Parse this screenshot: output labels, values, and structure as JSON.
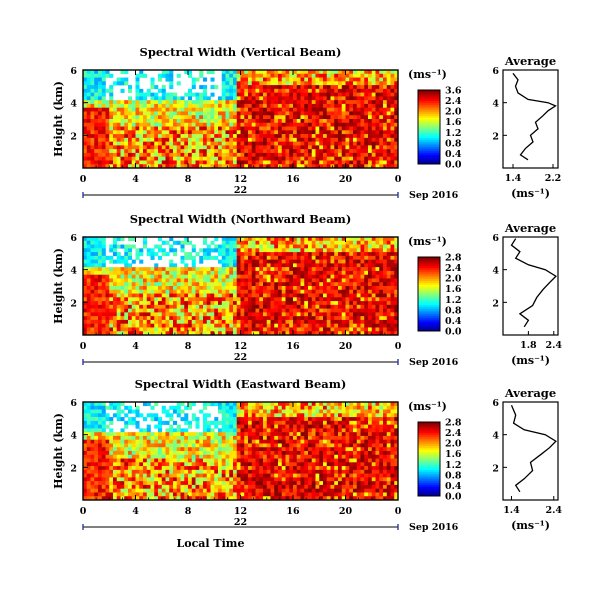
{
  "chart_data": [
    {
      "type": "heatmap",
      "title": "Spectral Width (Vertical Beam)",
      "ylabel": "Height (km)",
      "y_ticks": [
        "6",
        "4",
        "2"
      ],
      "ylim": [
        0,
        6
      ],
      "x_ticks": [
        "0",
        "4",
        "8",
        "12",
        "16",
        "20",
        "0"
      ],
      "day_label": "22",
      "date_label": "Sep 2016",
      "unit_label": "(ms⁻¹)",
      "colorbar": {
        "ticks": [
          "3.6",
          "2.4",
          "2.0",
          "1.6",
          "1.2",
          "0.8",
          "0.4",
          "0.0"
        ],
        "range": [
          0,
          3.6
        ]
      },
      "average": {
        "title": "Average",
        "xlabel": "(ms⁻¹)",
        "x_ticks": [
          "1.4",
          "2.2"
        ],
        "xlim": [
          1.2,
          2.3
        ],
        "y_ticks": [
          "6",
          "4",
          "2"
        ],
        "ylim": [
          0,
          6
        ],
        "profile": [
          [
            1.7,
            0.5
          ],
          [
            1.55,
            0.8
          ],
          [
            1.65,
            1.2
          ],
          [
            1.8,
            1.6
          ],
          [
            1.75,
            2.0
          ],
          [
            1.9,
            2.4
          ],
          [
            1.85,
            2.8
          ],
          [
            2.0,
            3.2
          ],
          [
            2.1,
            3.5
          ],
          [
            2.25,
            3.8
          ],
          [
            2.1,
            4.0
          ],
          [
            1.7,
            4.2
          ],
          [
            1.5,
            4.6
          ],
          [
            1.45,
            5.0
          ],
          [
            1.5,
            5.4
          ],
          [
            1.4,
            5.8
          ]
        ]
      }
    },
    {
      "type": "heatmap",
      "title": "Spectral Width (Northward Beam)",
      "ylabel": "Height (km)",
      "y_ticks": [
        "6",
        "4",
        "2"
      ],
      "ylim": [
        0,
        6
      ],
      "x_ticks": [
        "0",
        "4",
        "8",
        "12",
        "16",
        "20",
        "0"
      ],
      "day_label": "22",
      "date_label": "Sep 2016",
      "unit_label": "(ms⁻¹)",
      "colorbar": {
        "ticks": [
          "2.8",
          "2.4",
          "2.0",
          "1.6",
          "1.2",
          "0.8",
          "0.4",
          "0.0"
        ],
        "range": [
          0,
          2.8
        ]
      },
      "average": {
        "title": "Average",
        "xlabel": "(ms⁻¹)",
        "x_ticks": [
          "1.8",
          "2.4"
        ],
        "xlim": [
          1.2,
          2.5
        ],
        "y_ticks": [
          "6",
          "4",
          "2"
        ],
        "ylim": [
          0,
          6
        ],
        "profile": [
          [
            1.7,
            0.5
          ],
          [
            1.8,
            0.9
          ],
          [
            1.6,
            1.3
          ],
          [
            1.9,
            1.8
          ],
          [
            2.0,
            2.3
          ],
          [
            2.15,
            2.8
          ],
          [
            2.3,
            3.2
          ],
          [
            2.45,
            3.6
          ],
          [
            2.2,
            4.0
          ],
          [
            1.8,
            4.3
          ],
          [
            1.5,
            4.7
          ],
          [
            1.6,
            5.1
          ],
          [
            1.4,
            5.5
          ],
          [
            1.5,
            5.9
          ]
        ]
      }
    },
    {
      "type": "heatmap",
      "title": "Spectral Width (Eastward Beam)",
      "ylabel": "Height (km)",
      "y_ticks": [
        "6",
        "4",
        "2"
      ],
      "ylim": [
        0,
        6
      ],
      "x_ticks": [
        "0",
        "4",
        "8",
        "12",
        "16",
        "20",
        "0"
      ],
      "day_label": "22",
      "date_label": "Sep 2016",
      "unit_label": "(ms⁻¹)",
      "xlabel": "Local Time",
      "colorbar": {
        "ticks": [
          "2.8",
          "2.4",
          "2.0",
          "1.6",
          "1.2",
          "0.8",
          "0.4",
          "0.0"
        ],
        "range": [
          0,
          2.8
        ]
      },
      "average": {
        "title": "Average",
        "xlabel": "(ms⁻¹)",
        "x_ticks": [
          "1.4",
          "2.4"
        ],
        "xlim": [
          1.2,
          2.5
        ],
        "y_ticks": [
          "6",
          "4",
          "2"
        ],
        "ylim": [
          0,
          6
        ],
        "profile": [
          [
            1.6,
            0.5
          ],
          [
            1.5,
            0.9
          ],
          [
            1.7,
            1.3
          ],
          [
            1.9,
            1.8
          ],
          [
            1.85,
            2.3
          ],
          [
            2.1,
            2.8
          ],
          [
            2.3,
            3.2
          ],
          [
            2.45,
            3.6
          ],
          [
            2.2,
            4.0
          ],
          [
            1.7,
            4.3
          ],
          [
            1.45,
            4.7
          ],
          [
            1.5,
            5.2
          ],
          [
            1.4,
            5.8
          ]
        ]
      }
    }
  ]
}
